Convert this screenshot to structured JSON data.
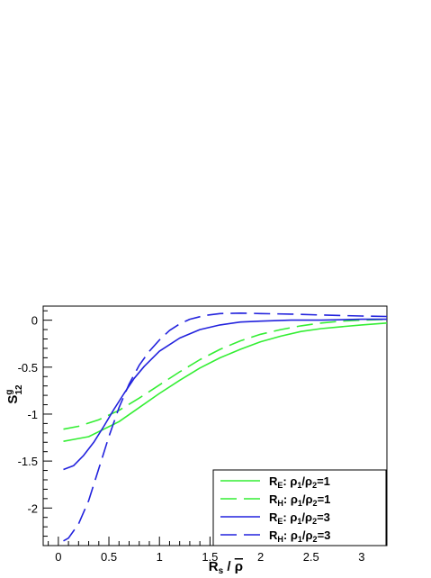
{
  "chart_data": {
    "type": "line",
    "xlim": [
      -0.15,
      3.25
    ],
    "ylim": [
      -2.4,
      0.15
    ],
    "x_ticks": [
      0,
      0.5,
      1,
      1.5,
      2,
      2.5,
      3
    ],
    "x_tick_labels": [
      "0",
      "0.5",
      "1",
      "1.5",
      "2",
      "2.5",
      "3"
    ],
    "y_ticks": [
      0,
      -0.5,
      -1,
      -1.5,
      -2
    ],
    "y_tick_labels": [
      "0",
      "-0.5",
      "-1",
      "-1.5",
      "-2"
    ],
    "xlabel": {
      "main": "R",
      "sub": "s",
      "rest": " / ",
      "rho": "ρ"
    },
    "ylabel": {
      "main": "S",
      "sup": "g",
      "sub": "12"
    },
    "grid": false,
    "legend_position": "bottom-right",
    "series": [
      {
        "label": {
          "a": "R",
          "a_sub": "E",
          "b": ": ρ",
          "b_sub": "1",
          "c": "/ρ",
          "c_sub": "2",
          "d": "=1"
        },
        "color": "#33ee33",
        "dash": "solid",
        "x": [
          0.05,
          0.15,
          0.3,
          0.45,
          0.6,
          0.8,
          1.0,
          1.2,
          1.4,
          1.6,
          1.8,
          2.0,
          2.2,
          2.4,
          2.6,
          2.8,
          3.0,
          3.25
        ],
        "y": [
          -1.29,
          -1.27,
          -1.24,
          -1.16,
          -1.08,
          -0.93,
          -0.78,
          -0.64,
          -0.51,
          -0.4,
          -0.31,
          -0.23,
          -0.17,
          -0.12,
          -0.09,
          -0.07,
          -0.05,
          -0.03
        ]
      },
      {
        "label": {
          "a": "R",
          "a_sub": "H",
          "b": ": ρ",
          "b_sub": "1",
          "c": "/ρ",
          "c_sub": "2",
          "d": "=1"
        },
        "color": "#33ee33",
        "dash": "long",
        "x": [
          0.05,
          0.2,
          0.4,
          0.6,
          0.8,
          1.0,
          1.2,
          1.4,
          1.6,
          1.8,
          2.0,
          2.2,
          2.4,
          2.6,
          2.8,
          3.0,
          3.25
        ],
        "y": [
          -1.16,
          -1.13,
          -1.06,
          -0.96,
          -0.83,
          -0.69,
          -0.55,
          -0.42,
          -0.31,
          -0.22,
          -0.15,
          -0.1,
          -0.06,
          -0.03,
          -0.01,
          0.0,
          0.01
        ]
      },
      {
        "label": {
          "a": "R",
          "a_sub": "E",
          "b": ": ρ",
          "b_sub": "1",
          "c": "/ρ",
          "c_sub": "2",
          "d": "=3"
        },
        "color": "#2222dd",
        "dash": "solid",
        "x": [
          0.05,
          0.15,
          0.25,
          0.35,
          0.45,
          0.55,
          0.65,
          0.75,
          0.85,
          1.0,
          1.2,
          1.4,
          1.6,
          1.8,
          2.0,
          2.3,
          2.6,
          3.0,
          3.25
        ],
        "y": [
          -1.59,
          -1.55,
          -1.44,
          -1.3,
          -1.13,
          -0.95,
          -0.78,
          -0.62,
          -0.49,
          -0.33,
          -0.19,
          -0.1,
          -0.05,
          -0.02,
          -0.01,
          0.0,
          0.0,
          0.01,
          0.01
        ]
      },
      {
        "label": {
          "a": "R",
          "a_sub": "H",
          "b": ": ρ",
          "b_sub": "1",
          "c": "/ρ",
          "c_sub": "2",
          "d": "=3"
        },
        "color": "#2222dd",
        "dash": "long",
        "x": [
          0.05,
          0.1,
          0.2,
          0.3,
          0.4,
          0.5,
          0.6,
          0.7,
          0.8,
          0.9,
          1.0,
          1.1,
          1.2,
          1.3,
          1.45,
          1.6,
          1.8,
          2.0,
          2.3,
          2.6,
          3.0,
          3.25
        ],
        "y": [
          -2.35,
          -2.32,
          -2.17,
          -1.92,
          -1.58,
          -1.24,
          -0.93,
          -0.68,
          -0.48,
          -0.33,
          -0.21,
          -0.11,
          -0.04,
          0.01,
          0.05,
          0.07,
          0.075,
          0.07,
          0.065,
          0.055,
          0.045,
          0.04
        ]
      }
    ]
  }
}
